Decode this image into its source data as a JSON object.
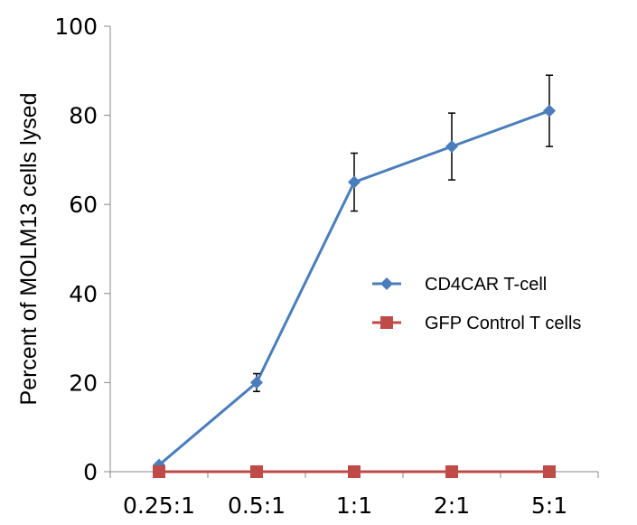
{
  "chart_data": {
    "type": "line",
    "title": "",
    "xlabel": "",
    "ylabel": "Percent of MOLM13 cells lysed",
    "categories": [
      "0.25:1",
      "0.5:1",
      "1:1",
      "2:1",
      "5:1"
    ],
    "ylim": [
      0,
      100
    ],
    "yticks": [
      0,
      20,
      40,
      60,
      80,
      100
    ],
    "grid": false,
    "legend_position": "center-right",
    "series": [
      {
        "name": "CD4CAR T-cell",
        "values": [
          1.5,
          20,
          65,
          73,
          81
        ],
        "error": [
          0,
          2,
          6.5,
          7.5,
          8
        ],
        "color": "#4a7ebb",
        "marker": "diamond"
      },
      {
        "name": "GFP Control T cells",
        "values": [
          0,
          0,
          0,
          0,
          0
        ],
        "error": [
          0,
          0,
          0,
          0,
          0
        ],
        "color": "#be4b48",
        "marker": "square"
      }
    ]
  }
}
